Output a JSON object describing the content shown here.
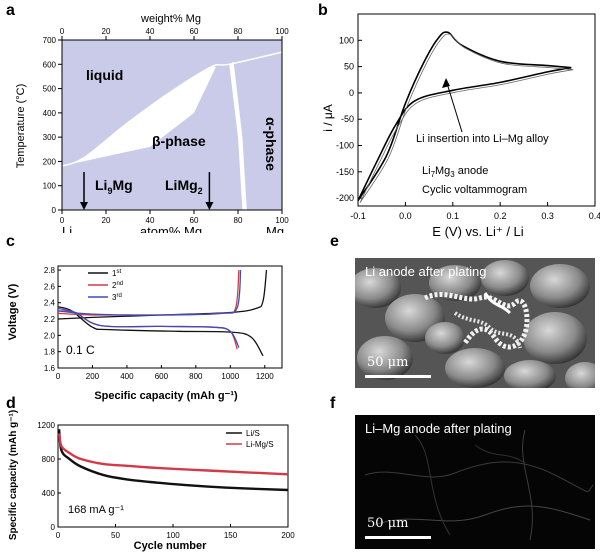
{
  "panels": {
    "a": "a",
    "b": "b",
    "c": "c",
    "d": "d",
    "e": "e",
    "f": "f"
  },
  "panel_a": {
    "top_axis_label": "weight% Mg",
    "bottom_axis_label": "atom% Mg",
    "ylabel": "Temperature (°C)",
    "left_end_label": "Li",
    "right_end_label": "Mg",
    "regions": {
      "liquid": "liquid",
      "beta": "β-phase",
      "alpha": "α-phase"
    },
    "compound1": {
      "main": "Li",
      "sub": "9",
      "tail": "Mg"
    },
    "compound2": {
      "main": "LiMg",
      "sub": "2"
    },
    "colors": {
      "fill": "#c9cbe8",
      "beta": "#ffffff"
    }
  },
  "panel_b": {
    "xlabel": "E (V) vs. Li⁺ / Li",
    "ylabel": "i / μA",
    "annotation": "Li insertion into Li–Mg alloy",
    "anode": {
      "main": "Li",
      "sub1": "7",
      "mid": "Mg",
      "sub2": "3",
      "tail": " anode"
    },
    "method": "Cyclic voltammogram"
  },
  "panel_c": {
    "xlabel": "Specific capacity (mAh g⁻¹)",
    "ylabel": "Voltage (V)",
    "rate": "0.1 C",
    "legend": [
      {
        "n": "1",
        "sup": "st",
        "color": "#111111"
      },
      {
        "n": "2",
        "sup": "nd",
        "color": "#d23a4a"
      },
      {
        "n": "3",
        "sup": "rd",
        "color": "#3a4fb8"
      }
    ]
  },
  "panel_d": {
    "xlabel": "Cycle number",
    "ylabel": "Specific capacity (mAh g⁻¹)",
    "current": "168 mA g⁻¹",
    "legend": [
      {
        "label": "Li/S",
        "color": "#111111"
      },
      {
        "label": "Li-Mg/S",
        "color": "#d23a4a"
      }
    ]
  },
  "panel_e": {
    "title": "Li anode after plating",
    "scale": "50 μm"
  },
  "panel_f": {
    "title": "Li–Mg anode after plating",
    "scale": "50 μm"
  },
  "chart_data": [
    {
      "id": "a",
      "type": "area",
      "x_bottom_ticks": [
        "0",
        "20",
        "40",
        "60",
        "80",
        "100"
      ],
      "x_top_ticks": [
        "0",
        "20",
        "40",
        "60",
        "80",
        "100"
      ],
      "y_ticks": [
        "0",
        "100",
        "200",
        "300",
        "400",
        "500",
        "600",
        "700"
      ],
      "xlim": [
        0,
        100
      ],
      "ylim": [
        0,
        700
      ],
      "liquidus": [
        [
          0,
          181
        ],
        [
          10,
          215
        ],
        [
          30,
          360
        ],
        [
          50,
          490
        ],
        [
          68,
          590
        ],
        [
          76,
          600
        ],
        [
          100,
          650
        ]
      ],
      "solvus": [
        [
          0,
          181
        ],
        [
          40,
          260
        ],
        [
          60,
          400
        ],
        [
          70,
          590
        ]
      ],
      "alpha_boundary_left": [
        [
          76,
          600
        ],
        [
          80,
          300
        ],
        [
          82,
          0
        ]
      ],
      "alpha_boundary_right": [
        [
          78,
          610
        ],
        [
          82,
          300
        ],
        [
          84,
          0
        ]
      ],
      "arrows": [
        {
          "x": 10,
          "label": "Li9Mg"
        },
        {
          "x": 67,
          "label": "LiMg2"
        }
      ]
    },
    {
      "id": "b",
      "type": "line",
      "x_ticks": [
        "-0.1",
        "0.0",
        "0.1",
        "0.2",
        "0.3",
        "0.4"
      ],
      "y_ticks": [
        "-200",
        "-150",
        "-100",
        "-50",
        "0",
        "50",
        "100"
      ],
      "xlim": [
        -0.1,
        0.4
      ],
      "ylim": [
        -215,
        150
      ],
      "series": [
        {
          "values_upper": [
            [
              -0.1,
              -205
            ],
            [
              -0.04,
              -120
            ],
            [
              0.0,
              -20
            ],
            [
              0.04,
              60
            ],
            [
              0.07,
              105
            ],
            [
              0.09,
              115
            ],
            [
              0.12,
              90
            ],
            [
              0.2,
              60
            ],
            [
              0.3,
              52
            ],
            [
              0.35,
              48
            ]
          ],
          "values_lower": [
            [
              0.35,
              48
            ],
            [
              0.3,
              40
            ],
            [
              0.2,
              20
            ],
            [
              0.1,
              5
            ],
            [
              0.02,
              -15
            ],
            [
              -0.02,
              -60
            ],
            [
              -0.06,
              -130
            ],
            [
              -0.1,
              -205
            ]
          ]
        }
      ]
    },
    {
      "id": "c",
      "type": "line",
      "x_ticks": [
        "0",
        "200",
        "400",
        "600",
        "800",
        "1000",
        "1200"
      ],
      "y_ticks": [
        "1.6",
        "1.8",
        "2.0",
        "2.2",
        "2.4",
        "2.6",
        "2.8"
      ],
      "xlim": [
        0,
        1300
      ],
      "ylim": [
        1.6,
        2.85
      ],
      "series": [
        {
          "name": "1st",
          "charge": [
            [
              0,
              2.2
            ],
            [
              200,
              2.22
            ],
            [
              600,
              2.25
            ],
            [
              1000,
              2.28
            ],
            [
              1150,
              2.33
            ],
            [
              1190,
              2.42
            ],
            [
              1210,
              2.8
            ]
          ],
          "discharge": [
            [
              0,
              2.35
            ],
            [
              80,
              2.3
            ],
            [
              200,
              2.1
            ],
            [
              300,
              2.07
            ],
            [
              700,
              2.05
            ],
            [
              1000,
              2.04
            ],
            [
              1120,
              1.98
            ],
            [
              1190,
              1.75
            ]
          ]
        },
        {
          "name": "2nd",
          "charge": [
            [
              0,
              2.27
            ],
            [
              200,
              2.25
            ],
            [
              600,
              2.25
            ],
            [
              950,
              2.27
            ],
            [
              1030,
              2.33
            ],
            [
              1050,
              2.8
            ]
          ],
          "discharge": [
            [
              0,
              2.3
            ],
            [
              100,
              2.28
            ],
            [
              250,
              2.12
            ],
            [
              600,
              2.11
            ],
            [
              900,
              2.1
            ],
            [
              1000,
              2.05
            ],
            [
              1040,
              1.83
            ]
          ]
        },
        {
          "name": "3rd",
          "charge": [
            [
              0,
              2.3
            ],
            [
              200,
              2.26
            ],
            [
              600,
              2.25
            ],
            [
              950,
              2.27
            ],
            [
              1040,
              2.34
            ],
            [
              1060,
              2.8
            ]
          ],
          "discharge": [
            [
              0,
              2.33
            ],
            [
              100,
              2.28
            ],
            [
              250,
              2.12
            ],
            [
              600,
              2.11
            ],
            [
              900,
              2.1
            ],
            [
              1000,
              2.05
            ],
            [
              1050,
              1.85
            ]
          ]
        }
      ]
    },
    {
      "id": "d",
      "type": "line",
      "x_ticks": [
        "0",
        "50",
        "100",
        "150",
        "200"
      ],
      "y_ticks": [
        "0",
        "400",
        "800",
        "1200"
      ],
      "xlim": [
        0,
        200
      ],
      "ylim": [
        0,
        1200
      ],
      "series": [
        {
          "name": "Li/S",
          "values": [
            [
              1,
              1150
            ],
            [
              3,
              900
            ],
            [
              10,
              800
            ],
            [
              20,
              710
            ],
            [
              40,
              610
            ],
            [
              60,
              560
            ],
            [
              80,
              530
            ],
            [
              100,
              505
            ],
            [
              130,
              475
            ],
            [
              160,
              455
            ],
            [
              200,
              435
            ]
          ]
        },
        {
          "name": "Li-Mg/S",
          "values": [
            [
              1,
              1100
            ],
            [
              3,
              950
            ],
            [
              10,
              870
            ],
            [
              20,
              800
            ],
            [
              40,
              740
            ],
            [
              60,
              720
            ],
            [
              80,
              700
            ],
            [
              100,
              685
            ],
            [
              130,
              665
            ],
            [
              160,
              645
            ],
            [
              200,
              620
            ]
          ]
        }
      ]
    }
  ]
}
